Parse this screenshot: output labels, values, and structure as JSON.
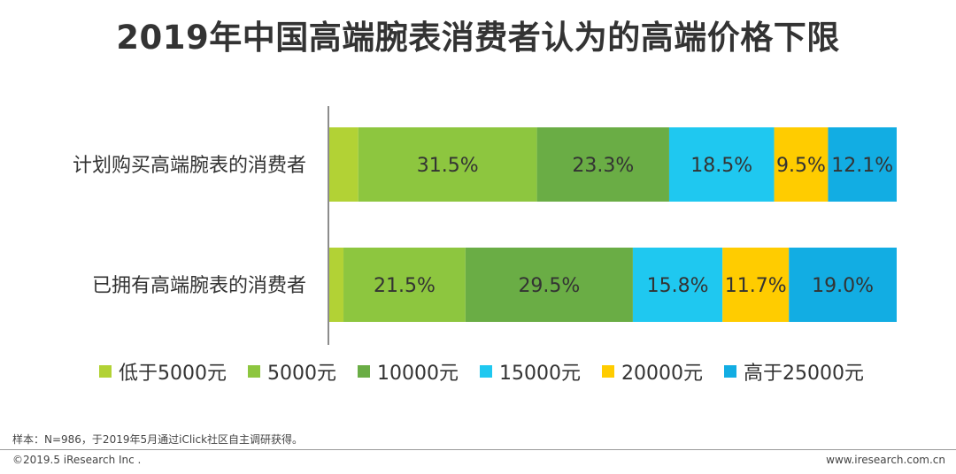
{
  "chart_data": {
    "type": "bar",
    "orientation": "horizontal",
    "stacked": true,
    "title": "2019年中国高端腕表消费者认为的高端价格下限",
    "categories": [
      "计划购买高端腕表的消费者",
      "已拥有高端腕表的消费者"
    ],
    "series": [
      {
        "name": "低于5000元",
        "color": "#B2D235",
        "values": [
          5.1,
          2.5
        ],
        "labels": [
          "",
          ""
        ]
      },
      {
        "name": "5000元",
        "color": "#8DC63F",
        "values": [
          31.5,
          21.5
        ],
        "labels": [
          "31.5%",
          "21.5%"
        ]
      },
      {
        "name": "10000元",
        "color": "#6AAD45",
        "values": [
          23.3,
          29.5
        ],
        "labels": [
          "23.3%",
          "29.5%"
        ]
      },
      {
        "name": "15000元",
        "color": "#1FC8F0",
        "values": [
          18.5,
          15.8
        ],
        "labels": [
          "18.5%",
          "15.8%"
        ]
      },
      {
        "name": "20000元",
        "color": "#FFCC00",
        "values": [
          9.5,
          11.7
        ],
        "labels": [
          "9.5%",
          "11.7%"
        ]
      },
      {
        "name": "高于25000元",
        "color": "#12ADE3",
        "values": [
          12.1,
          19.0
        ],
        "labels": [
          "12.1%",
          "19.0%"
        ]
      }
    ],
    "xlim": [
      0,
      100
    ],
    "legend_position": "bottom"
  },
  "footnote": "样本：N=986，于2019年5月通过iClick社区自主调研获得。",
  "copyright": "©2019.5 iResearch Inc .",
  "website": "www.iresearch.com.cn"
}
